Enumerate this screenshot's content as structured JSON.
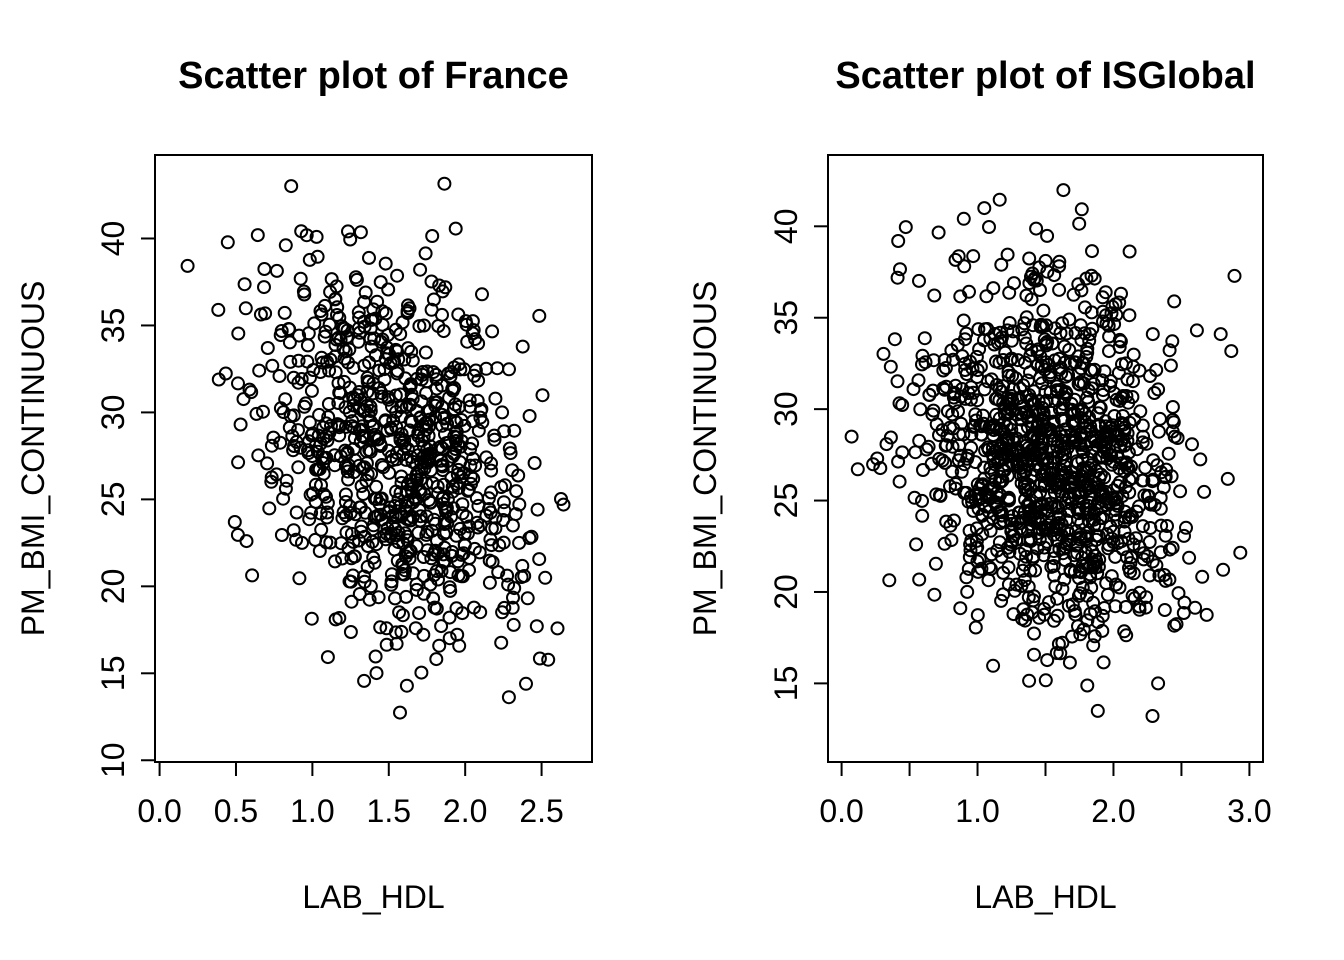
{
  "figure": {
    "background_color": "#ffffff",
    "foreground_color": "#000000"
  },
  "chart_data": [
    {
      "type": "scatter",
      "title": "Scatter plot of France",
      "xlabel": "LAB_HDL",
      "ylabel": "PM_BMI_CONTINUOUS",
      "marker": "open-circle",
      "marker_color": "#000000",
      "grid": "off",
      "legend": "none",
      "xlim": [
        -0.03,
        2.83
      ],
      "ylim": [
        9.9,
        44.8
      ],
      "x_ticks": [
        0.0,
        0.5,
        1.0,
        1.5,
        2.0,
        2.5
      ],
      "x_tick_labels": [
        "0.0",
        "0.5",
        "1.0",
        "1.5",
        "2.0",
        "2.5"
      ],
      "y_ticks": [
        10,
        15,
        20,
        25,
        30,
        35,
        40
      ],
      "y_tick_labels": [
        "10",
        "15",
        "20",
        "25",
        "30",
        "35",
        "40"
      ],
      "n_points": 850,
      "distribution": {
        "seed": 20,
        "mean_x": 1.55,
        "sd_x": 0.43,
        "mean_y": 27.4,
        "sd_y": 5.4,
        "correlation": -0.25,
        "x_range": [
          0.08,
          2.72
        ],
        "y_range": [
          11.2,
          43.5
        ]
      }
    },
    {
      "type": "scatter",
      "title": "Scatter plot of ISGlobal",
      "xlabel": "LAB_HDL",
      "ylabel": "PM_BMI_CONTINUOUS",
      "marker": "open-circle",
      "marker_color": "#000000",
      "grid": "off",
      "legend": "none",
      "xlim": [
        -0.1,
        3.1
      ],
      "ylim": [
        10.7,
        43.9
      ],
      "x_ticks": [
        0.0,
        0.5,
        1.0,
        1.5,
        2.0,
        2.5,
        3.0
      ],
      "x_tick_labels": [
        "0.0",
        "",
        "1.0",
        "",
        "2.0",
        "",
        "3.0"
      ],
      "y_ticks": [
        15,
        20,
        25,
        30,
        35,
        40
      ],
      "y_tick_labels": [
        "15",
        "20",
        "25",
        "30",
        "35",
        "40"
      ],
      "n_points": 1200,
      "distribution": {
        "seed": 77,
        "mean_x": 1.55,
        "sd_x": 0.46,
        "mean_y": 27.3,
        "sd_y": 5.1,
        "correlation": -0.18,
        "x_range": [
          0.03,
          2.97
        ],
        "y_range": [
          11.9,
          42.7
        ]
      }
    }
  ]
}
